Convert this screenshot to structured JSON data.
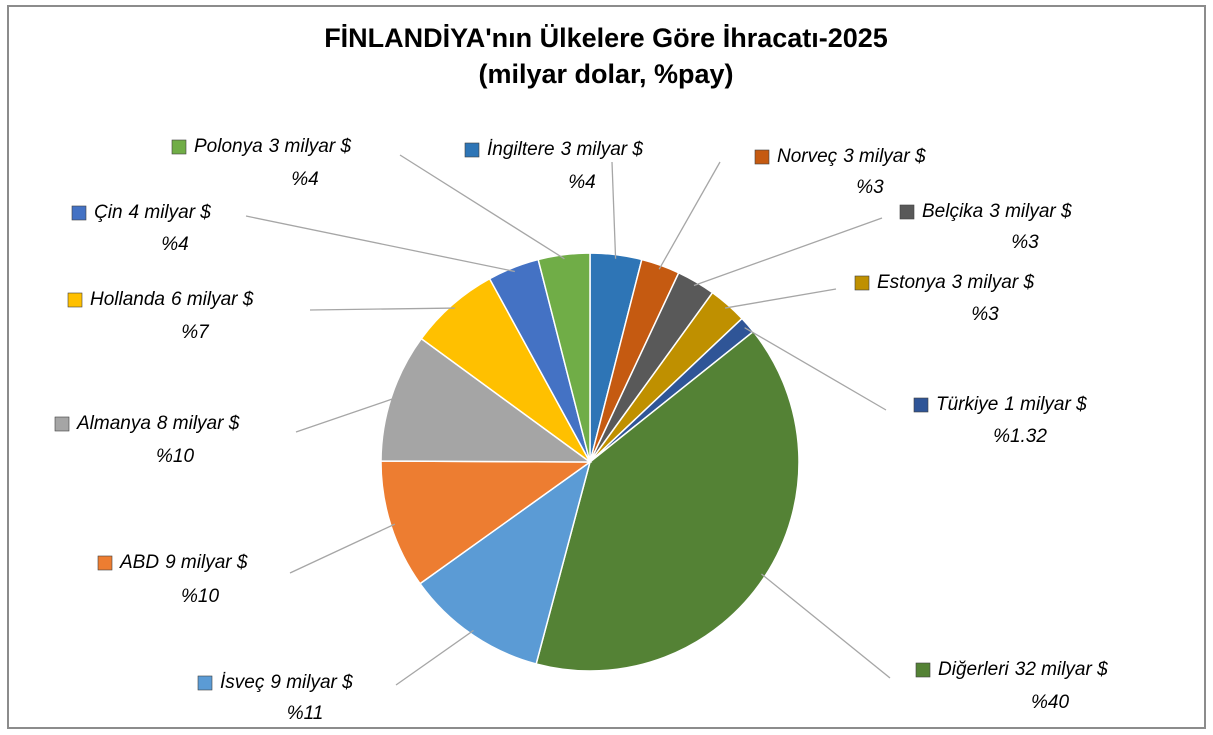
{
  "chart_data": {
    "type": "pie",
    "title": "FİNLANDİYA'nın Ülkelere Göre İhracatı-2025",
    "subtitle": "(milyar dolar, %pay)",
    "categories": [
      "İngiltere",
      "Norveç",
      "Belçika",
      "Estonya",
      "Türkiye",
      "Diğerleri",
      "İsveç",
      "ABD",
      "Almanya",
      "Hollanda",
      "Çin",
      "Polonya"
    ],
    "amounts": [
      3,
      3,
      3,
      3,
      1,
      32,
      9,
      9,
      8,
      6,
      4,
      3
    ],
    "amount_labels": [
      "3 milyar $",
      "3 milyar $",
      "3 milyar $",
      "3 milyar $",
      "1 milyar $",
      "32 milyar $",
      "9 milyar $",
      "9 milyar $",
      "8 milyar $",
      "6 milyar $",
      "4 milyar $",
      "3 milyar $"
    ],
    "values": [
      4,
      3,
      3,
      3,
      1.32,
      40,
      11,
      10,
      10,
      7,
      4,
      4
    ],
    "value_labels": [
      "%4",
      "%3",
      "%3",
      "%3",
      "%1.32",
      "%40",
      "%11",
      "%10",
      "%10",
      "%7",
      "%4",
      "%4"
    ],
    "colors": [
      "#2e75b6",
      "#c55a11",
      "#595959",
      "#bf9000",
      "#2f5597",
      "#548235",
      "#5b9bd5",
      "#ed7d31",
      "#a5a5a5",
      "#ffc000",
      "#4472c4",
      "#70ad47"
    ]
  }
}
